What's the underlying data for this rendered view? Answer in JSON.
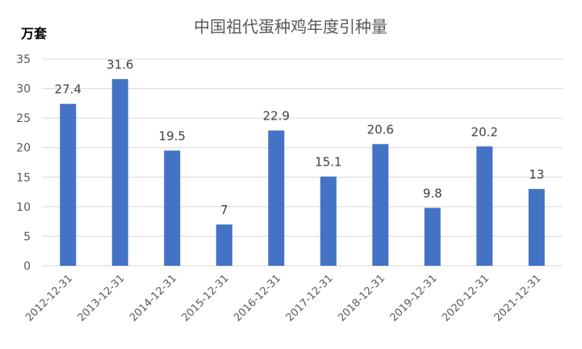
{
  "chart_data": {
    "type": "bar",
    "title": "中国祖代蛋种鸡年度引种量",
    "unit_label": "万套",
    "categories": [
      "2012-12-31",
      "2013-12-31",
      "2014-12-31",
      "2015-12-31",
      "2016-12-31",
      "2017-12-31",
      "2018-12-31",
      "2019-12-31",
      "2020-12-31",
      "2021-12-31"
    ],
    "values": [
      27.4,
      31.6,
      19.5,
      7,
      22.9,
      15.1,
      20.6,
      9.8,
      20.2,
      13
    ],
    "value_labels": [
      "27.4",
      "31.6",
      "19.5",
      "7",
      "22.9",
      "15.1",
      "20.6",
      "9.8",
      "20.2",
      "13"
    ],
    "yticks": [
      "0",
      "5",
      "10",
      "15",
      "20",
      "25",
      "30",
      "35"
    ],
    "ylim": [
      0,
      35
    ],
    "grid": true,
    "bar_color": "#4472C4",
    "legend": "none"
  }
}
